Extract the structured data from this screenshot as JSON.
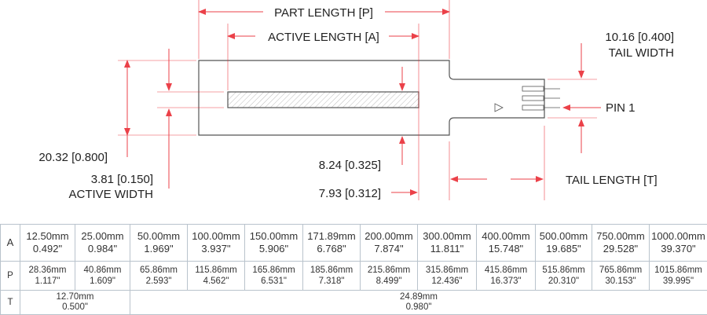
{
  "labels": {
    "part_length": "PART LENGTH [P]",
    "active_length": "ACTIVE LENGTH [A]",
    "tail_width_value": "10.16 [0.400]",
    "tail_width": "TAIL WIDTH",
    "pin1": "PIN 1",
    "overall_width": "20.32 [0.800]",
    "active_width_value": "3.81 [0.150]",
    "active_width": "ACTIVE WIDTH",
    "dim_824": "8.24 [0.325]",
    "dim_793": "7.93 [0.312]",
    "tail_length": "TAIL LENGTH [T]"
  },
  "colors": {
    "dimension": "#e8202a",
    "outline": "#555555",
    "grid": "#b9c3cc"
  },
  "table": {
    "row_labels": [
      "A",
      "P",
      "T"
    ],
    "A": [
      [
        "12.50mm",
        "0.492\""
      ],
      [
        "25.00mm",
        "0.984\""
      ],
      [
        "50.00mm",
        "1.969\""
      ],
      [
        "100.00mm",
        "3.937\""
      ],
      [
        "150.00mm",
        "5.906\""
      ],
      [
        "171.89mm",
        "6.768\""
      ],
      [
        "200.00mm",
        "7.874\""
      ],
      [
        "300.00mm",
        "11.811\""
      ],
      [
        "400.00mm",
        "15.748\""
      ],
      [
        "500.00mm",
        "19.685\""
      ],
      [
        "750.00mm",
        "29.528\""
      ],
      [
        "1000.00mm",
        "39.370\""
      ]
    ],
    "P": [
      [
        "28.36mm",
        "1.117\""
      ],
      [
        "40.86mm",
        "1.609\""
      ],
      [
        "65.86mm",
        "2.593\""
      ],
      [
        "115.86mm",
        "4.562\""
      ],
      [
        "165.86mm",
        "6.531\""
      ],
      [
        "185.86mm",
        "7.318\""
      ],
      [
        "215.86mm",
        "8.499\""
      ],
      [
        "315.86mm",
        "12.436\""
      ],
      [
        "415.86mm",
        "16.373\""
      ],
      [
        "515.86mm",
        "20.310\""
      ],
      [
        "765.86mm",
        "30.153\""
      ],
      [
        "1015.86mm",
        "39.995\""
      ]
    ],
    "T": [
      [
        "12.70mm",
        "0.500\""
      ],
      [
        "24.89mm",
        "0.980\""
      ]
    ]
  }
}
